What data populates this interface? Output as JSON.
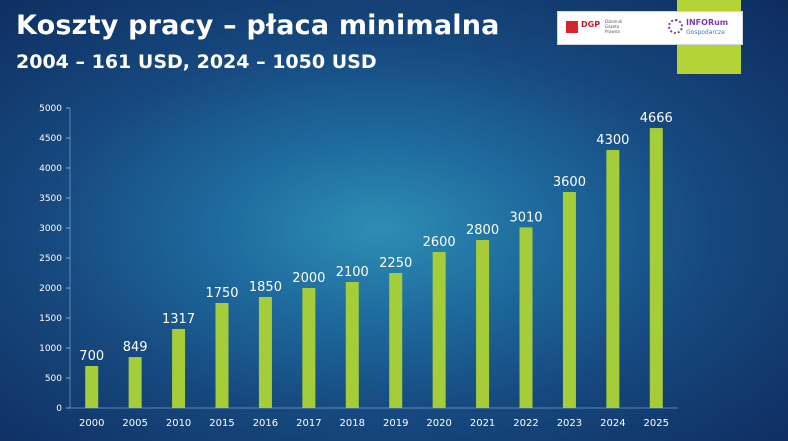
{
  "slide": {
    "title": "Koszty pracy – płaca minimalna",
    "subtitle": "2004 – 161 USD, 2024 – 1050 USD"
  },
  "logos": {
    "dgp": {
      "text": "DGP",
      "subtext": "Dziennik Gazeta Prawna"
    },
    "inforum": {
      "text": "INFORum",
      "subtext": "Gospodarcze"
    }
  },
  "colors": {
    "bar": "#a4cd39",
    "accent_green": "#b4d336",
    "text": "#ffffff",
    "label": "#ffffff"
  },
  "chart_data": {
    "type": "bar",
    "title": "",
    "xlabel": "",
    "ylabel": "",
    "categories": [
      "2000",
      "2005",
      "2010",
      "2015",
      "2016",
      "2017",
      "2018",
      "2019",
      "2020",
      "2021",
      "2022",
      "2023",
      "2024",
      "2025"
    ],
    "series": [
      {
        "values": [
          700,
          849,
          1317,
          1750,
          1850,
          2000,
          2100,
          2250,
          2600,
          2800,
          3010,
          3600,
          4300,
          4666
        ]
      }
    ],
    "ylim": [
      0,
      5000
    ],
    "yticks": [
      0,
      500,
      1000,
      1500,
      2000,
      2500,
      3000,
      3500,
      4000,
      4500,
      5000
    ],
    "grid": false,
    "legend": "none",
    "data_labels": true
  }
}
